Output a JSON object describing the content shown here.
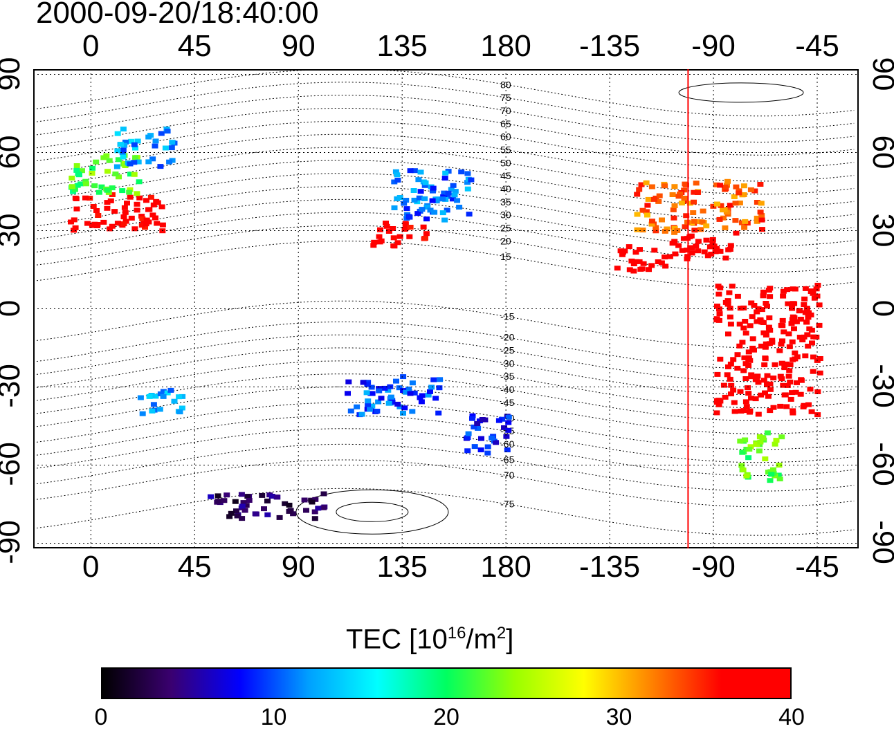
{
  "title": "2000-09-20/18:40:00",
  "map": {
    "x_tick_labels": [
      "0",
      "45",
      "90",
      "135",
      "180",
      "-135",
      "-90",
      "-45"
    ],
    "x_tick_lons": [
      0,
      45,
      90,
      135,
      180,
      225,
      270,
      315
    ],
    "y_tick_labels": [
      "90",
      "60",
      "30",
      "0",
      "-30",
      "-60",
      "-90"
    ],
    "y_tick_lats": [
      90,
      60,
      30,
      0,
      -30,
      -60,
      -90
    ],
    "lon_range": [
      -25,
      333
    ],
    "lat_range": [
      -92,
      92
    ],
    "grid": true,
    "meridian_marker_lon": -101,
    "meridian_marker_color": "#ff0000",
    "contour_labels": [
      "80",
      "75",
      "70",
      "65",
      "60",
      "55",
      "50",
      "45",
      "40",
      "35",
      "30",
      "25",
      "20",
      "15",
      "-15",
      "-20",
      "-25",
      "-30",
      "-35",
      "-40",
      "-45",
      "-50",
      "-55",
      "-60",
      "-65",
      "-70",
      "-75"
    ],
    "contour_lats": [
      83,
      78,
      73,
      68,
      63,
      58,
      53,
      48,
      43,
      38,
      33,
      28,
      23,
      17,
      -6,
      -14,
      -19,
      -24,
      -29,
      -34,
      -39,
      -45,
      -50,
      -55,
      -61,
      -67,
      -78
    ]
  },
  "colorbar": {
    "label_prefix": "TEC  [10",
    "label_sup1": "16",
    "label_mid": "/m",
    "label_sup2": "2",
    "label_suffix": "]",
    "ticks": [
      "0",
      "10",
      "20",
      "30",
      "40"
    ],
    "min": 0,
    "max": 40,
    "colors": [
      "#000000",
      "#3a0070",
      "#0000ff",
      "#00a0ff",
      "#00ffff",
      "#00ff60",
      "#9aff00",
      "#ffff00",
      "#ff8000",
      "#ff0000",
      "#ff0000"
    ]
  },
  "chart_data": {
    "type": "heatmap",
    "title": "2000-09-20/18:40:00",
    "colorbar_label": "TEC [10^16/m^2]",
    "value_range": [
      0,
      40
    ],
    "regions": [
      {
        "lon": [
          -10,
          30
        ],
        "lat": [
          30,
          45
        ],
        "value": 38
      },
      {
        "lon": [
          -10,
          20
        ],
        "lat": [
          45,
          60
        ],
        "value": 22
      },
      {
        "lon": [
          10,
          35
        ],
        "lat": [
          55,
          70
        ],
        "value": 12
      },
      {
        "lon": [
          120,
          145
        ],
        "lat": [
          25,
          35
        ],
        "value": 38
      },
      {
        "lon": [
          130,
          165
        ],
        "lat": [
          35,
          55
        ],
        "value": 11
      },
      {
        "lon": [
          235,
          290
        ],
        "lat": [
          30,
          50
        ],
        "value": 33
      },
      {
        "lon": [
          250,
          285
        ],
        "lat": [
          20,
          30
        ],
        "value": 39
      },
      {
        "lon": [
          270,
          315
        ],
        "lat": [
          -40,
          10
        ],
        "value": 40
      },
      {
        "lon": [
          280,
          300
        ],
        "lat": [
          -65,
          -45
        ],
        "value": 22
      },
      {
        "lon": [
          110,
          150
        ],
        "lat": [
          -40,
          -25
        ],
        "value": 10
      },
      {
        "lon": [
          160,
          180
        ],
        "lat": [
          -55,
          -40
        ],
        "value": 8
      },
      {
        "lon": [
          50,
          100
        ],
        "lat": [
          -80,
          -70
        ],
        "value": 4
      },
      {
        "lon": [
          225,
          250
        ],
        "lat": [
          15,
          25
        ],
        "value": 39
      },
      {
        "lon": [
          20,
          40
        ],
        "lat": [
          -40,
          -30
        ],
        "value": 13
      }
    ]
  }
}
